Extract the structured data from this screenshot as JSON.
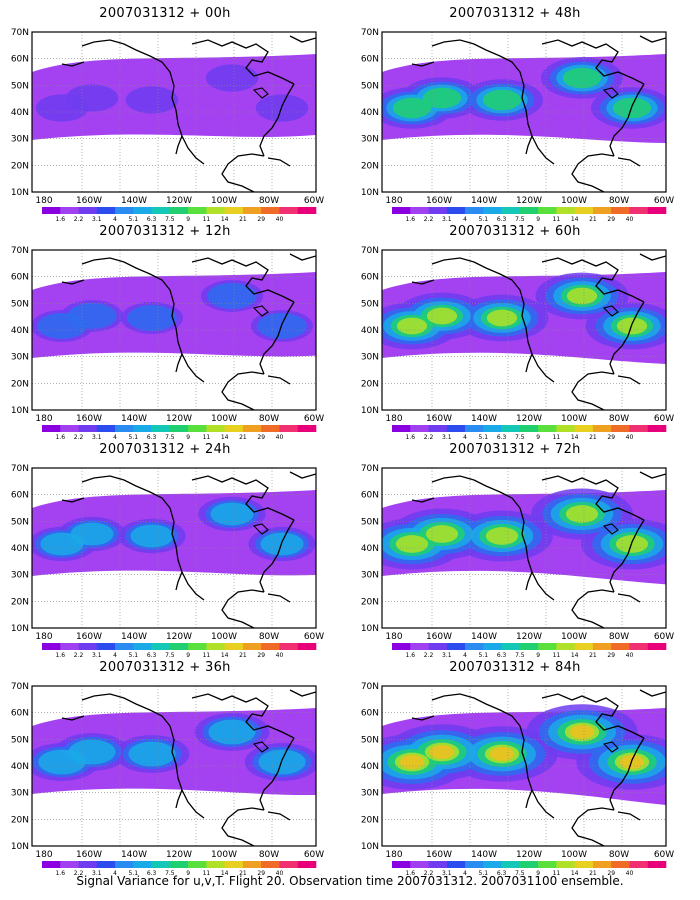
{
  "caption": "Signal Variance for u,v,T. Flight 20. Observation time 2007031312. 2007031100 ensemble.",
  "lat_labels": [
    "70N",
    "60N",
    "50N",
    "40N",
    "30N",
    "20N",
    "10N"
  ],
  "lon_labels": [
    "180",
    "160W",
    "140W",
    "120W",
    "100W",
    "80W",
    "60W"
  ],
  "colorbar": {
    "labels": [
      "1.6",
      "2.2",
      "3.1",
      "4",
      "5.1",
      "6.3",
      "7.5",
      "9",
      "11",
      "14",
      "21",
      "29",
      "40"
    ],
    "colors": [
      "#8a00e0",
      "#a040f0",
      "#6f3cf0",
      "#2d4cf0",
      "#2a8cf0",
      "#1aaae8",
      "#14c8b8",
      "#20d070",
      "#5ae03c",
      "#b0e028",
      "#e8d020",
      "#f0a020",
      "#f06a28",
      "#f03070",
      "#e8007a"
    ]
  },
  "panels": [
    {
      "title": "2007031312 + 00h",
      "level": 0.15
    },
    {
      "title": "2007031312 + 48h",
      "level": 0.55
    },
    {
      "title": "2007031312 + 12h",
      "level": 0.28
    },
    {
      "title": "2007031312 + 60h",
      "level": 0.7
    },
    {
      "title": "2007031312 + 24h",
      "level": 0.35
    },
    {
      "title": "2007031312 + 72h",
      "level": 0.82
    },
    {
      "title": "2007031312 + 36h",
      "level": 0.45
    },
    {
      "title": "2007031312 + 84h",
      "level": 0.95
    }
  ]
}
